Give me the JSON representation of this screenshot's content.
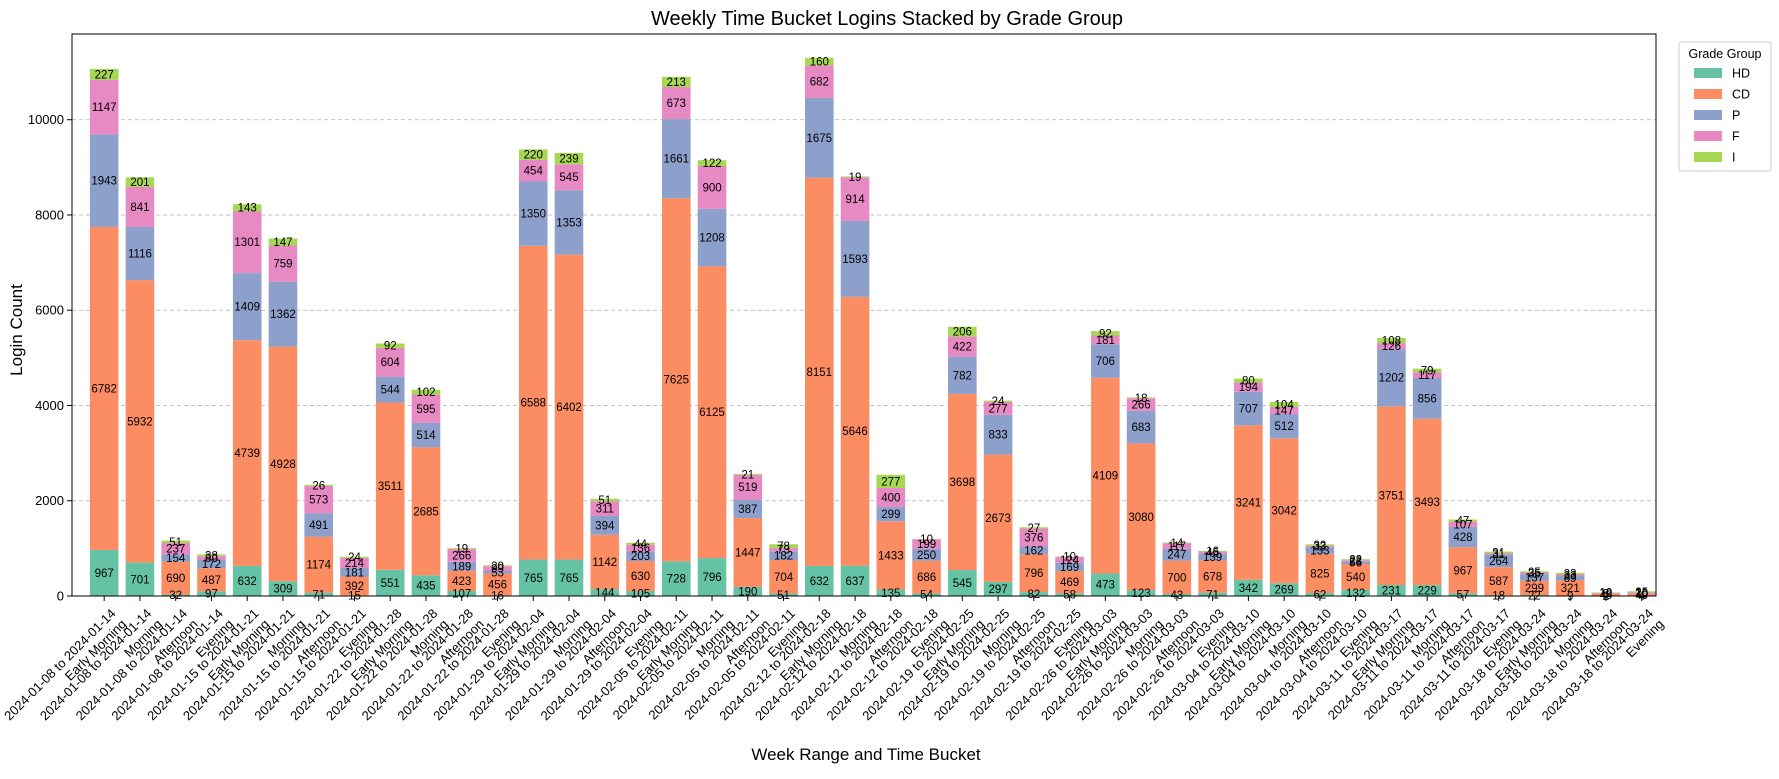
{
  "chart_data": {
    "type": "bar",
    "stacked": true,
    "title": "Weekly Time Bucket Logins Stacked by Grade Group",
    "xlabel": "Week Range and Time Bucket",
    "ylabel": "Login Count",
    "ylim": [
      0,
      11800
    ],
    "yticks": [
      0,
      2000,
      4000,
      6000,
      8000,
      10000
    ],
    "grid": "y-dashed",
    "legend": {
      "title": "Grade Group",
      "placement": "outside-top-right"
    },
    "categories": [
      "2024-01-08 to 2024-01-14 Early Morning",
      "2024-01-08 to 2024-01-14 Morning",
      "2024-01-08 to 2024-01-14 Afternoon",
      "2024-01-08 to 2024-01-14 Evening",
      "2024-01-15 to 2024-01-21 Early Morning",
      "2024-01-15 to 2024-01-21 Morning",
      "2024-01-15 to 2024-01-21 Afternoon",
      "2024-01-15 to 2024-01-21 Evening",
      "2024-01-22 to 2024-01-28 Early Morning",
      "2024-01-22 to 2024-01-28 Morning",
      "2024-01-22 to 2024-01-28 Afternoon",
      "2024-01-22 to 2024-01-28 Evening",
      "2024-01-29 to 2024-02-04 Early Morning",
      "2024-01-29 to 2024-02-04 Morning",
      "2024-01-29 to 2024-02-04 Afternoon",
      "2024-01-29 to 2024-02-04 Evening",
      "2024-02-05 to 2024-02-11 Early Morning",
      "2024-02-05 to 2024-02-11 Morning",
      "2024-02-05 to 2024-02-11 Afternoon",
      "2024-02-05 to 2024-02-11 Evening",
      "2024-02-12 to 2024-02-18 Early Morning",
      "2024-02-12 to 2024-02-18 Morning",
      "2024-02-12 to 2024-02-18 Afternoon",
      "2024-02-12 to 2024-02-18 Evening",
      "2024-02-19 to 2024-02-25 Early Morning",
      "2024-02-19 to 2024-02-25 Morning",
      "2024-02-19 to 2024-02-25 Afternoon",
      "2024-02-19 to 2024-02-25 Evening",
      "2024-02-26 to 2024-03-03 Early Morning",
      "2024-02-26 to 2024-03-03 Morning",
      "2024-02-26 to 2024-03-03 Afternoon",
      "2024-02-26 to 2024-03-03 Evening",
      "2024-03-04 to 2024-03-10 Early Morning",
      "2024-03-04 to 2024-03-10 Morning",
      "2024-03-04 to 2024-03-10 Afternoon",
      "2024-03-04 to 2024-03-10 Evening",
      "2024-03-11 to 2024-03-17 Early Morning",
      "2024-03-11 to 2024-03-17 Morning",
      "2024-03-11 to 2024-03-17 Afternoon",
      "2024-03-11 to 2024-03-17 Evening",
      "2024-03-18 to 2024-03-24 Early Morning",
      "2024-03-18 to 2024-03-24 Morning",
      "2024-03-18 to 2024-03-24 Afternoon",
      "2024-03-18 to 2024-03-24 Evening"
    ],
    "series": [
      {
        "name": "HD",
        "color": "#66c2a5",
        "values": [
          967,
          701,
          32,
          97,
          632,
          309,
          71,
          15,
          551,
          435,
          107,
          16,
          765,
          765,
          144,
          105,
          728,
          796,
          190,
          51,
          632,
          637,
          135,
          54,
          545,
          297,
          82,
          58,
          473,
          123,
          43,
          71,
          342,
          269,
          62,
          132,
          231,
          229,
          57,
          18,
          22,
          9,
          2,
          4
        ]
      },
      {
        "name": "CD",
        "color": "#fc8d62",
        "values": [
          6782,
          5932,
          690,
          487,
          4739,
          4928,
          1174,
          392,
          3511,
          2685,
          423,
          456,
          6588,
          6402,
          1142,
          630,
          7625,
          6125,
          1447,
          704,
          8151,
          5646,
          1433,
          686,
          3698,
          2673,
          796,
          469,
          4109,
          3080,
          700,
          678,
          3241,
          3042,
          825,
          540,
          3751,
          3493,
          967,
          587,
          299,
          321,
          45,
          40
        ]
      },
      {
        "name": "P",
        "color": "#8da0cb",
        "values": [
          1943,
          1116,
          154,
          172,
          1409,
          1362,
          491,
          181,
          544,
          514,
          189,
          53,
          1350,
          1353,
          394,
          203,
          1661,
          1208,
          387,
          182,
          1675,
          1593,
          299,
          250,
          782,
          833,
          162,
          169,
          706,
          683,
          247,
          139,
          707,
          512,
          133,
          56,
          1202,
          856,
          428,
          264,
          137,
          89,
          8,
          10
        ]
      },
      {
        "name": "F",
        "color": "#e78ac3",
        "values": [
          1147,
          841,
          237,
          80,
          1301,
          759,
          573,
          214,
          604,
          595,
          266,
          99,
          454,
          545,
          311,
          136,
          673,
          900,
          519,
          73,
          682,
          914,
          400,
          199,
          422,
          277,
          376,
          124,
          181,
          266,
          117,
          45,
          194,
          147,
          33,
          23,
          126,
          117,
          107,
          31,
          35,
          33,
          12,
          20
        ]
      },
      {
        "name": "I",
        "color": "#a6d854",
        "values": [
          227,
          201,
          51,
          38,
          143,
          147,
          26,
          24,
          92,
          102,
          19,
          20,
          220,
          239,
          51,
          44,
          213,
          122,
          21,
          78,
          160,
          19,
          277,
          10,
          206,
          24,
          27,
          10,
          92,
          18,
          14,
          16,
          80,
          104,
          32,
          22,
          108,
          79,
          47,
          31,
          25,
          33,
          10,
          25
        ]
      }
    ]
  },
  "tick_labels": [
    [
      "2024-01-08 to 2024-01-14",
      "Early Morning"
    ],
    [
      "2024-01-08 to 2024-01-14",
      "Morning"
    ],
    [
      "2024-01-08 to 2024-01-14",
      "Afternoon"
    ],
    [
      "2024-01-08 to 2024-01-14",
      "Evening"
    ],
    [
      "2024-01-15 to 2024-01-21",
      "Early Morning"
    ],
    [
      "2024-01-15 to 2024-01-21",
      "Morning"
    ],
    [
      "2024-01-15 to 2024-01-21",
      "Afternoon"
    ],
    [
      "2024-01-15 to 2024-01-21",
      "Evening"
    ],
    [
      "2024-01-22 to 2024-01-28",
      "Early Morning"
    ],
    [
      "2024-01-22 to 2024-01-28",
      "Morning"
    ],
    [
      "2024-01-22 to 2024-01-28",
      "Afternoon"
    ],
    [
      "2024-01-22 to 2024-01-28",
      "Evening"
    ],
    [
      "2024-01-29 to 2024-02-04",
      "Early Morning"
    ],
    [
      "2024-01-29 to 2024-02-04",
      "Morning"
    ],
    [
      "2024-01-29 to 2024-02-04",
      "Afternoon"
    ],
    [
      "2024-01-29 to 2024-02-04",
      "Evening"
    ],
    [
      "2024-02-05 to 2024-02-11",
      "Early Morning"
    ],
    [
      "2024-02-05 to 2024-02-11",
      "Morning"
    ],
    [
      "2024-02-05 to 2024-02-11",
      "Afternoon"
    ],
    [
      "2024-02-05 to 2024-02-11",
      "Evening"
    ],
    [
      "2024-02-12 to 2024-02-18",
      "Early Morning"
    ],
    [
      "2024-02-12 to 2024-02-18",
      "Morning"
    ],
    [
      "2024-02-12 to 2024-02-18",
      "Afternoon"
    ],
    [
      "2024-02-12 to 2024-02-18",
      "Evening"
    ],
    [
      "2024-02-19 to 2024-02-25",
      "Early Morning"
    ],
    [
      "2024-02-19 to 2024-02-25",
      "Morning"
    ],
    [
      "2024-02-19 to 2024-02-25",
      "Afternoon"
    ],
    [
      "2024-02-19 to 2024-02-25",
      "Evening"
    ],
    [
      "2024-02-26 to 2024-03-03",
      "Early Morning"
    ],
    [
      "2024-02-26 to 2024-03-03",
      "Morning"
    ],
    [
      "2024-02-26 to 2024-03-03",
      "Afternoon"
    ],
    [
      "2024-02-26 to 2024-03-03",
      "Evening"
    ],
    [
      "2024-03-04 to 2024-03-10",
      "Early Morning"
    ],
    [
      "2024-03-04 to 2024-03-10",
      "Morning"
    ],
    [
      "2024-03-04 to 2024-03-10",
      "Afternoon"
    ],
    [
      "2024-03-04 to 2024-03-10",
      "Evening"
    ],
    [
      "2024-03-11 to 2024-03-17",
      "Early Morning"
    ],
    [
      "2024-03-11 to 2024-03-17",
      "Morning"
    ],
    [
      "2024-03-11 to 2024-03-17",
      "Afternoon"
    ],
    [
      "2024-03-11 to 2024-03-17",
      "Evening"
    ],
    [
      "2024-03-18 to 2024-03-24",
      "Early Morning"
    ],
    [
      "2024-03-18 to 2024-03-24",
      "Morning"
    ],
    [
      "2024-03-18 to 2024-03-24",
      "Afternoon"
    ],
    [
      "2024-03-18 to 2024-03-24",
      "Evening"
    ]
  ]
}
